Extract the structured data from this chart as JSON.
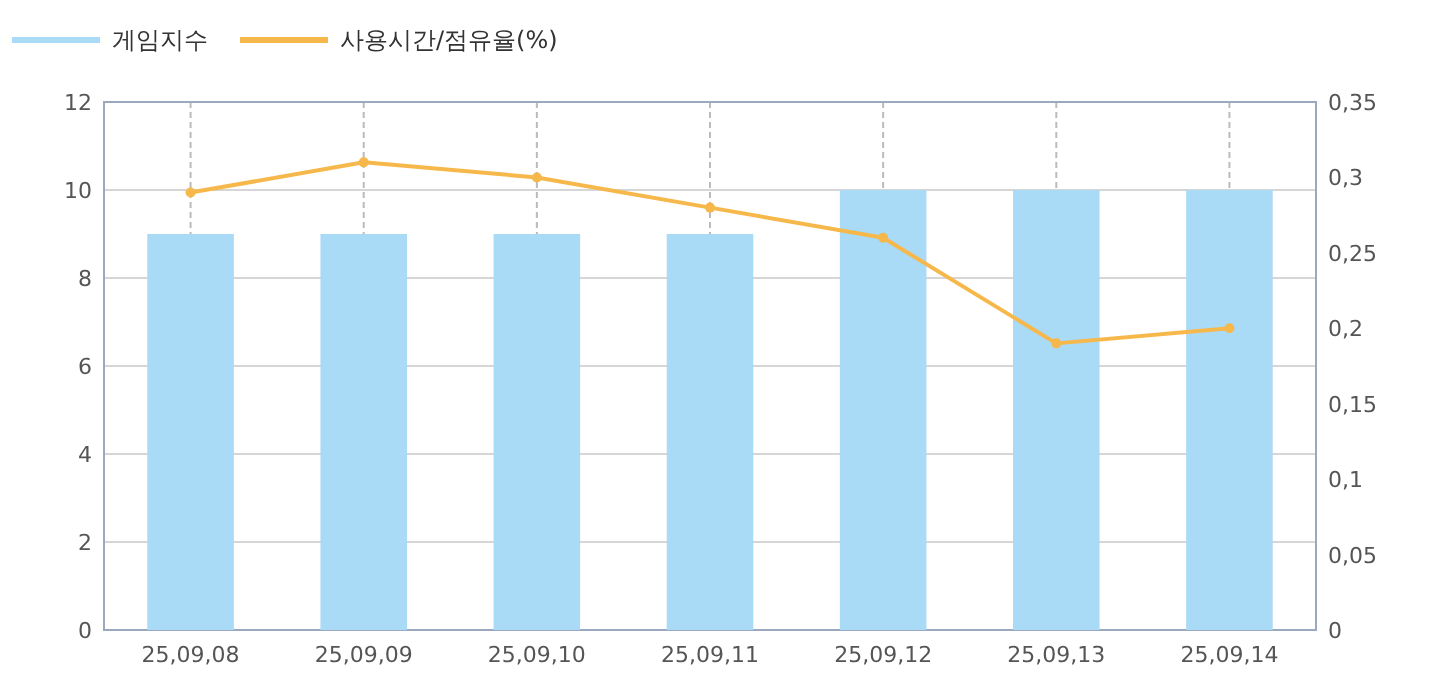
{
  "chart_data": {
    "type": "bar",
    "categories": [
      "25,09,08",
      "25,09,09",
      "25,09,10",
      "25,09,11",
      "25,09,12",
      "25,09,13",
      "25,09,14"
    ],
    "series": [
      {
        "name": "게임지수",
        "color": "#a9daf6",
        "values": [
          9,
          9,
          9,
          9,
          10,
          10,
          10
        ]
      },
      {
        "name": "사용시간/점유율(%)",
        "type": "line",
        "axis": "y2",
        "color": "#f7b84b",
        "values": [
          0.29,
          0.31,
          0.3,
          0.28,
          0.26,
          0.19,
          0.2
        ]
      }
    ],
    "ylim": [
      0,
      12
    ],
    "yticks": [
      0,
      2,
      4,
      6,
      8,
      10,
      12
    ],
    "y2lim": [
      0,
      0.35
    ],
    "y2ticks": [
      0,
      {
        "value": 0.05,
        "label": "0,05"
      },
      {
        "value": 0.1,
        "label": "0,1"
      },
      {
        "value": 0.15,
        "label": "0,15"
      },
      {
        "value": 0.2,
        "label": "0,2"
      },
      {
        "value": 0.25,
        "label": "0,25"
      },
      {
        "value": 0.3,
        "label": "0,3"
      },
      {
        "value": 0.35,
        "label": "0,35"
      }
    ],
    "grid": true,
    "legend": "top left",
    "marker": "circle"
  }
}
